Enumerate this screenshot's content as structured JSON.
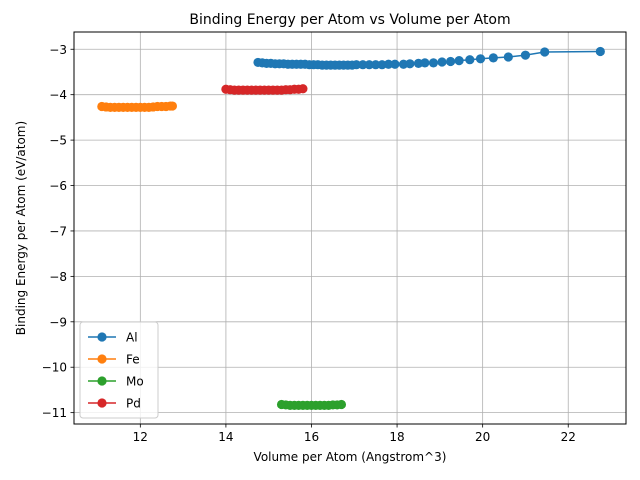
{
  "chart_data": {
    "type": "line",
    "title": "Binding Energy per Atom vs Volume per Atom",
    "xlabel": "Volume per Atom (Angstrom^3)",
    "ylabel": "Binding Energy per Atom (eV/atom)",
    "xlim": [
      10.45,
      23.35
    ],
    "ylim": [
      -11.25,
      -2.62
    ],
    "xticks": [
      12,
      14,
      16,
      18,
      20,
      22
    ],
    "xtick_labels": [
      "12",
      "14",
      "16",
      "18",
      "20",
      "22"
    ],
    "yticks": [
      -3,
      -4,
      -5,
      -6,
      -7,
      -8,
      -9,
      -10,
      -11
    ],
    "ytick_labels": [
      "−3",
      "−4",
      "−5",
      "−6",
      "−7",
      "−8",
      "−9",
      "−10",
      "−11"
    ],
    "grid": true,
    "legend_position": "lower-left",
    "series": [
      {
        "name": "Al",
        "color": "#1f77b4",
        "x": [
          14.75,
          14.85,
          14.95,
          15.05,
          15.15,
          15.25,
          15.35,
          15.45,
          15.55,
          15.65,
          15.75,
          15.85,
          15.95,
          16.05,
          16.15,
          16.25,
          16.35,
          16.45,
          16.55,
          16.65,
          16.75,
          16.85,
          16.95,
          17.05,
          17.2,
          17.35,
          17.5,
          17.65,
          17.8,
          17.95,
          18.15,
          18.3,
          18.5,
          18.65,
          18.85,
          19.05,
          19.25,
          19.45,
          19.7,
          19.95,
          20.25,
          20.6,
          21.0,
          21.45,
          22.75
        ],
        "y": [
          -3.29,
          -3.3,
          -3.31,
          -3.31,
          -3.32,
          -3.32,
          -3.32,
          -3.33,
          -3.33,
          -3.33,
          -3.33,
          -3.33,
          -3.34,
          -3.34,
          -3.34,
          -3.35,
          -3.35,
          -3.35,
          -3.35,
          -3.35,
          -3.35,
          -3.35,
          -3.35,
          -3.34,
          -3.34,
          -3.34,
          -3.34,
          -3.34,
          -3.33,
          -3.33,
          -3.33,
          -3.32,
          -3.31,
          -3.3,
          -3.3,
          -3.28,
          -3.27,
          -3.25,
          -3.23,
          -3.21,
          -3.19,
          -3.17,
          -3.13,
          -3.06,
          -3.05
        ]
      },
      {
        "name": "Fe",
        "color": "#ff7f0e",
        "x": [
          11.1,
          11.2,
          11.3,
          11.4,
          11.5,
          11.6,
          11.7,
          11.8,
          11.9,
          12.0,
          12.1,
          12.2,
          12.3,
          12.4,
          12.5,
          12.6,
          12.7,
          12.75
        ],
        "y": [
          -4.26,
          -4.27,
          -4.28,
          -4.28,
          -4.28,
          -4.28,
          -4.28,
          -4.28,
          -4.28,
          -4.28,
          -4.28,
          -4.28,
          -4.27,
          -4.26,
          -4.26,
          -4.26,
          -4.25,
          -4.25
        ]
      },
      {
        "name": "Mo",
        "color": "#2ca02c",
        "x": [
          15.3,
          15.4,
          15.5,
          15.6,
          15.7,
          15.8,
          15.9,
          16.0,
          16.1,
          16.2,
          16.3,
          16.4,
          16.5,
          16.6,
          16.7
        ],
        "y": [
          -10.82,
          -10.83,
          -10.84,
          -10.84,
          -10.84,
          -10.84,
          -10.84,
          -10.84,
          -10.84,
          -10.84,
          -10.84,
          -10.84,
          -10.83,
          -10.83,
          -10.82
        ]
      },
      {
        "name": "Pd",
        "color": "#d62728",
        "x": [
          14.0,
          14.1,
          14.2,
          14.3,
          14.4,
          14.5,
          14.6,
          14.7,
          14.8,
          14.9,
          15.0,
          15.1,
          15.2,
          15.3,
          15.4,
          15.5,
          15.6,
          15.7,
          15.8
        ],
        "y": [
          -3.88,
          -3.89,
          -3.9,
          -3.9,
          -3.9,
          -3.9,
          -3.9,
          -3.9,
          -3.9,
          -3.9,
          -3.9,
          -3.9,
          -3.9,
          -3.9,
          -3.89,
          -3.89,
          -3.88,
          -3.88,
          -3.87
        ]
      }
    ]
  }
}
